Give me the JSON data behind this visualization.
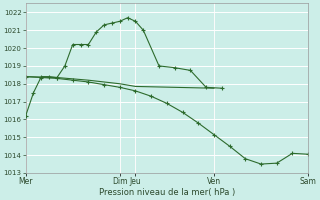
{
  "bg_color": "#cceee8",
  "grid_color": "#ffffff",
  "line_color": "#2d6b2d",
  "xlabel": "Pression niveau de la mer( hPa )",
  "ylim": [
    1013,
    1022.5
  ],
  "yticks": [
    1013,
    1014,
    1015,
    1016,
    1017,
    1018,
    1019,
    1020,
    1021,
    1022
  ],
  "xtick_labels": [
    "Mer",
    "Dim",
    "Jeu",
    "Ven",
    "Sam"
  ],
  "xtick_positions": [
    0,
    6,
    7,
    12,
    18
  ],
  "vlines": [
    0,
    6,
    7,
    12,
    18
  ],
  "line1_x": [
    0,
    0.5,
    1.0,
    1.5,
    2.0,
    2.5,
    3.0,
    3.5,
    4.0,
    4.5,
    5.0,
    5.5,
    6.0,
    6.5,
    7.0,
    7.5,
    8.5,
    9.5,
    10.5,
    11.5,
    12.5
  ],
  "line1_y": [
    1016.2,
    1017.5,
    1018.4,
    1018.4,
    1018.35,
    1019.0,
    1020.2,
    1020.2,
    1020.2,
    1020.9,
    1021.3,
    1021.4,
    1021.5,
    1021.7,
    1021.5,
    1021.0,
    1019.0,
    1018.9,
    1018.75,
    1017.8,
    1017.75
  ],
  "line2_x": [
    0,
    2,
    4,
    6,
    7,
    12
  ],
  "line2_y": [
    1018.4,
    1018.35,
    1018.2,
    1018.0,
    1017.85,
    1017.75
  ],
  "line3_x": [
    0,
    1,
    2,
    3,
    4,
    5,
    6,
    7,
    8,
    9,
    10,
    11,
    12,
    13,
    14,
    15,
    16,
    17,
    18
  ],
  "line3_y": [
    1018.4,
    1018.35,
    1018.3,
    1018.2,
    1018.1,
    1017.95,
    1017.8,
    1017.6,
    1017.3,
    1016.9,
    1016.4,
    1015.8,
    1015.15,
    1014.5,
    1013.8,
    1013.5,
    1013.55,
    1014.1,
    1014.05
  ],
  "figsize": [
    3.2,
    2.0
  ],
  "dpi": 100
}
